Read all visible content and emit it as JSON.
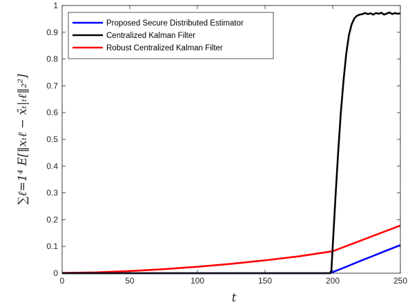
{
  "chart_data": {
    "type": "line",
    "title": "",
    "xlabel": "t",
    "ylabel": "∑ℓ=1⁴ E[‖xₜℓ − x̂ₜ|ₜℓ‖₂²]",
    "xlim": [
      0,
      250
    ],
    "ylim": [
      0,
      1
    ],
    "xticks": [
      "0",
      "50",
      "100",
      "150",
      "200",
      "250"
    ],
    "yticks": [
      "0",
      "0.1",
      "0.2",
      "0.3",
      "0.4",
      "0.5",
      "0.6",
      "0.7",
      "0.8",
      "0.9",
      "1"
    ],
    "grid": false,
    "legend_position": "top-left",
    "series": [
      {
        "name": "Proposed Secure Distributed Estimator",
        "color": "#0000ff",
        "x": [
          0,
          50,
          100,
          150,
          198,
          200,
          210,
          220,
          230,
          240,
          250
        ],
        "y": [
          0,
          0,
          0,
          0,
          0,
          0.004,
          0.024,
          0.045,
          0.065,
          0.085,
          0.105
        ]
      },
      {
        "name": "Centralized Kalman Filter",
        "color": "#000000",
        "x": [
          0,
          50,
          100,
          150,
          198,
          199,
          200,
          202,
          204,
          206,
          208,
          210,
          212,
          214,
          216,
          218,
          220,
          222,
          224,
          226,
          228,
          230,
          232,
          234,
          236,
          238,
          240,
          242,
          244,
          246,
          248,
          250
        ],
        "y": [
          0,
          0,
          0,
          0,
          0,
          0.01,
          0.1,
          0.28,
          0.45,
          0.6,
          0.72,
          0.82,
          0.89,
          0.93,
          0.952,
          0.962,
          0.966,
          0.968,
          0.972,
          0.968,
          0.971,
          0.966,
          0.972,
          0.969,
          0.973,
          0.966,
          0.97,
          0.974,
          0.968,
          0.972,
          0.969,
          0.971
        ]
      },
      {
        "name": "Robust Centralized Kalman Filter",
        "color": "#ff0000",
        "x": [
          0,
          25,
          50,
          75,
          100,
          125,
          150,
          175,
          200,
          225,
          250
        ],
        "y": [
          0.001,
          0.003,
          0.008,
          0.015,
          0.024,
          0.035,
          0.048,
          0.063,
          0.082,
          0.13,
          0.178
        ]
      }
    ]
  }
}
